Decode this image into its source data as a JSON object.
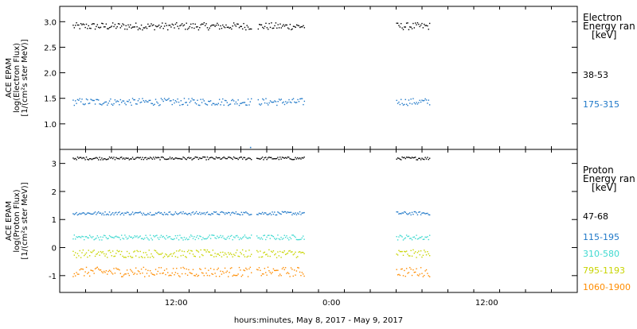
{
  "xlabel": "hours:minutes, May  8, 2017 - May  9, 2017",
  "x_ticks": [
    {
      "hour": 12,
      "label": "12:00"
    },
    {
      "hour": 24,
      "label": "0:00"
    },
    {
      "hour": 36,
      "label": "12:00"
    }
  ],
  "x_range_hours": [
    3,
    43
  ],
  "chart_data": [
    {
      "type": "scatter",
      "ylabel": [
        "ACE EPAM",
        "log(Electron Flux)",
        "[1/(cm²s ster MeV)]"
      ],
      "legend_title": [
        "Electron",
        "Energy ran",
        "[keV]"
      ],
      "ylim": [
        0.5,
        3.3
      ],
      "y_ticks": [
        {
          "value": 1.0,
          "label": "1.0"
        },
        {
          "value": 1.5,
          "label": "1.5"
        },
        {
          "value": 2.0,
          "label": "2.0"
        },
        {
          "value": 2.5,
          "label": "2.5"
        },
        {
          "value": 3.0,
          "label": "3.0"
        }
      ],
      "x_segments_hours": [
        [
          4.0,
          17.8
        ],
        [
          18.3,
          21.9
        ],
        [
          29.0,
          31.6
        ]
      ],
      "series": [
        {
          "name": "38-53",
          "color": "#000000",
          "level": 2.92,
          "jitter": 0.07
        },
        {
          "name": "175-315",
          "color": "#1f78c8",
          "level": 1.44,
          "jitter": 0.07
        }
      ],
      "outliers": [
        {
          "x": 17.7,
          "y": 0.55,
          "color": "#1f78c8"
        }
      ]
    },
    {
      "type": "scatter",
      "ylabel": [
        "ACE EPAM",
        "log(Proton Flux)",
        "[1/(cm²s ster MeV)]"
      ],
      "legend_title": [
        "Proton",
        "Energy ran",
        "[keV]"
      ],
      "ylim": [
        -1.6,
        3.5
      ],
      "y_ticks": [
        {
          "value": -1,
          "label": "-1"
        },
        {
          "value": 0,
          "label": "0"
        },
        {
          "value": 1,
          "label": "1"
        },
        {
          "value": 2,
          "label": "2"
        },
        {
          "value": 3,
          "label": "3"
        }
      ],
      "x_segments_hours": [
        [
          4.0,
          17.8
        ],
        [
          18.2,
          21.9
        ],
        [
          29.0,
          31.6
        ]
      ],
      "series": [
        {
          "name": "47-68",
          "color": "#000000",
          "level": 3.2,
          "jitter": 0.05
        },
        {
          "name": "115-195",
          "color": "#1f78c8",
          "level": 1.24,
          "jitter": 0.06
        },
        {
          "name": "310-580",
          "color": "#3fd9d0",
          "level": 0.38,
          "jitter": 0.09
        },
        {
          "name": "795-1193",
          "color": "#c8d400",
          "level": -0.2,
          "jitter": 0.14
        },
        {
          "name": "1060-1900",
          "color": "#ff8c00",
          "level": -0.85,
          "jitter": 0.17
        }
      ]
    }
  ]
}
